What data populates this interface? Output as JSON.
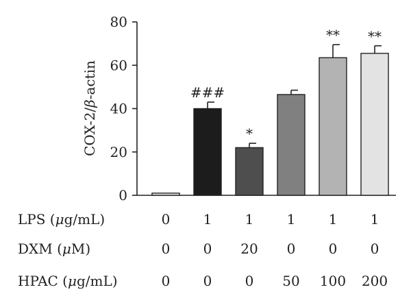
{
  "chart_data": {
    "type": "bar",
    "ylabel_prefix": "COX-2/",
    "ylabel_beta": "β",
    "ylabel_suffix": "-actin",
    "ylim": [
      0,
      80
    ],
    "yticks": [
      0,
      20,
      40,
      60,
      80
    ],
    "values": [
      1,
      40,
      22,
      46.5,
      63.5,
      65.5
    ],
    "errors": [
      0,
      3,
      2,
      2,
      6,
      3.5
    ],
    "significance": [
      "",
      "###",
      "*",
      "",
      "**",
      "**"
    ],
    "colors": [
      "#eeeeee",
      "#1c1c1c",
      "#4e4e4e",
      "#808080",
      "#b3b3b3",
      "#e3e3e3"
    ],
    "conditions": [
      {
        "label_pre": "LPS (",
        "label_unit": "μ",
        "label_post": "g/mL)",
        "values": [
          "0",
          "1",
          "1",
          "1",
          "1",
          "1"
        ]
      },
      {
        "label_pre": "DXM (",
        "label_unit": "μ",
        "label_post": "M)",
        "values": [
          "0",
          "0",
          "20",
          "0",
          "0",
          "0"
        ]
      },
      {
        "label_pre": "HPAC (",
        "label_unit": "μ",
        "label_post": "g/mL)",
        "values": [
          "0",
          "0",
          "0",
          "50",
          "100",
          "200"
        ]
      }
    ]
  }
}
